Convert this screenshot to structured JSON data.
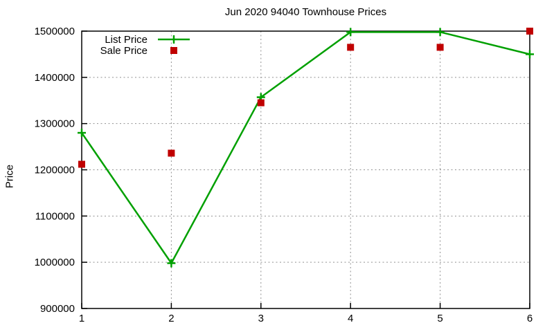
{
  "page": {
    "background": "#ffffff"
  },
  "chart_data": {
    "type": "line",
    "title": "Jun 2020 94040 Townhouse Prices",
    "xlabel": "",
    "ylabel": "Price",
    "x": [
      1,
      2,
      3,
      4,
      5,
      6
    ],
    "xticks": [
      1,
      2,
      3,
      4,
      5,
      6
    ],
    "yticks": [
      900000,
      1000000,
      1100000,
      1200000,
      1300000,
      1400000,
      1500000
    ],
    "xlim": [
      1,
      6
    ],
    "ylim": [
      900000,
      1500000
    ],
    "grid": true,
    "legend_position": "top-left",
    "series": [
      {
        "name": "List Price",
        "type": "line",
        "marker": "plus",
        "color": "#00a000",
        "values": [
          1280000,
          998000,
          1357000,
          1498000,
          1498000,
          1450000
        ]
      },
      {
        "name": "Sale Price",
        "type": "scatter",
        "marker": "square",
        "color": "#c00000",
        "values": [
          1212000,
          1236000,
          1345000,
          1465000,
          1465000,
          1500000
        ]
      }
    ],
    "axis_color": "#000000",
    "grid_color": "#909090",
    "text_color": "#000000"
  }
}
